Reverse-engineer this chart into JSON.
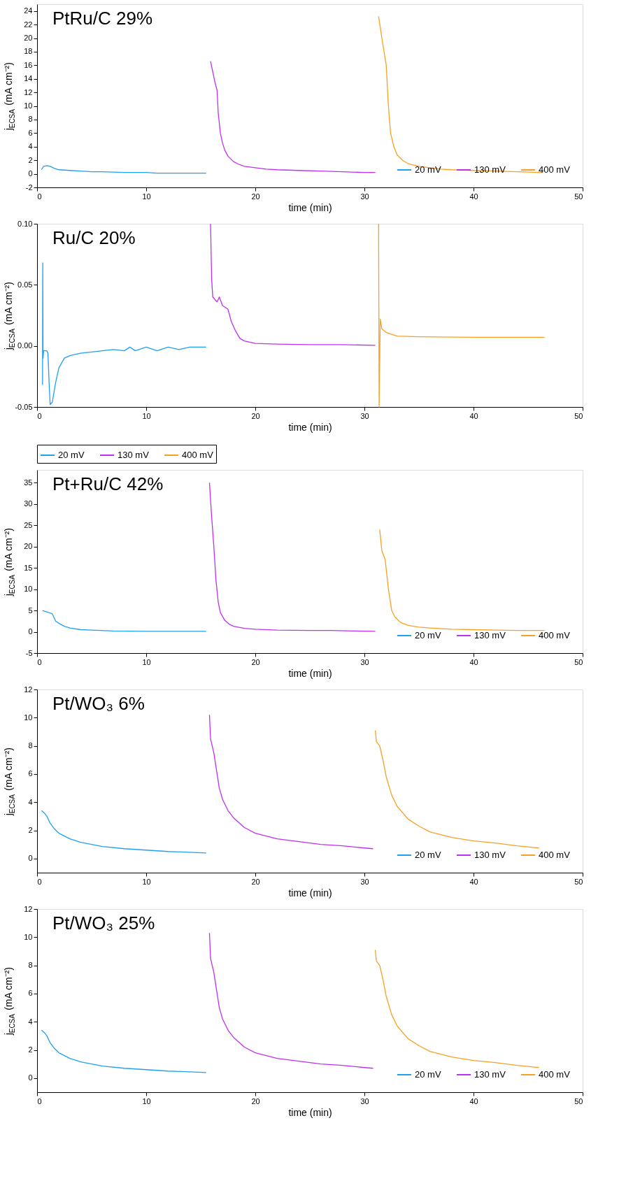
{
  "chart_data": [
    {
      "type": "line",
      "title": "PtRu/C 29%",
      "xlabel": "time (min)",
      "ylabel": "j$_{ECSA}$ (mA cm⁻²)",
      "xlim": [
        0,
        50
      ],
      "xticks": [
        0,
        10,
        20,
        30,
        40,
        50
      ],
      "ylim": [
        -2,
        25
      ],
      "yticks": [
        -2,
        0,
        2,
        4,
        6,
        8,
        10,
        12,
        14,
        16,
        18,
        20,
        22,
        24
      ],
      "legend": "bottom right",
      "series": [
        {
          "name": "20 mV",
          "color": "#1fa0f0",
          "x": [
            0.4,
            0.6,
            0.9,
            1.2,
            1.6,
            2,
            3,
            4,
            5,
            6,
            8,
            10,
            11,
            13,
            15.5
          ],
          "values": [
            0.6,
            1.1,
            1.2,
            1.1,
            0.8,
            0.6,
            0.5,
            0.4,
            0.3,
            0.3,
            0.2,
            0.2,
            0.1,
            0.1,
            0.1
          ]
        },
        {
          "name": "130 mV",
          "color": "#c030f0",
          "x": [
            15.9,
            16.3,
            16.5,
            16.6,
            16.8,
            17,
            17.2,
            17.5,
            18,
            18.5,
            19,
            20,
            21,
            22,
            24,
            26,
            28,
            30,
            31
          ],
          "values": [
            16.6,
            13.5,
            12.3,
            9,
            6,
            4.5,
            3.5,
            2.6,
            1.8,
            1.4,
            1.1,
            0.9,
            0.7,
            0.6,
            0.5,
            0.4,
            0.3,
            0.2,
            0.2
          ]
        },
        {
          "name": "400 mV",
          "color": "#f7a023",
          "x": [
            31.3,
            31.6,
            32,
            32.2,
            32.4,
            32.7,
            33,
            33.5,
            34,
            35,
            36,
            37,
            38,
            40,
            42,
            44,
            46.3
          ],
          "values": [
            23.2,
            20,
            16,
            10,
            6,
            4,
            2.8,
            2,
            1.5,
            1.1,
            0.9,
            0.7,
            0.6,
            0.5,
            0.4,
            0.3,
            0.2
          ]
        }
      ]
    },
    {
      "type": "line",
      "title": "Ru/C 20%",
      "xlabel": "time (min)",
      "ylabel": "j$_{ECSA}$ (mA cm⁻²)",
      "xlim": [
        0,
        50
      ],
      "xticks": [
        0,
        10,
        20,
        30,
        40,
        50
      ],
      "ylim": [
        -0.05,
        0.1
      ],
      "yticks": [
        {
          "value": -0.05,
          "label": "-0.05"
        },
        {
          "value": 0,
          "label": "0.00"
        },
        {
          "value": 0.05,
          "label": "0.05"
        },
        {
          "value": 0.1,
          "label": "0.10"
        }
      ],
      "legend": "bottom",
      "series": [
        {
          "name": "20 mV",
          "color": "#1fa0f0",
          "x": [
            0.5,
            0.52,
            0.55,
            0.6,
            0.9,
            1.0,
            1.1,
            1.2,
            1.4,
            1.7,
            2,
            2.5,
            3,
            4,
            5,
            6,
            7,
            8,
            8.5,
            9,
            10,
            11,
            12,
            13,
            14,
            15.5
          ],
          "values": [
            -0.032,
            0.068,
            -0.01,
            -0.004,
            -0.004,
            -0.006,
            -0.03,
            -0.048,
            -0.046,
            -0.03,
            -0.018,
            -0.01,
            -0.008,
            -0.006,
            -0.005,
            -0.004,
            -0.003,
            -0.004,
            -0.001,
            -0.004,
            -0.001,
            -0.004,
            -0.001,
            -0.003,
            -0.001,
            -0.001
          ]
        },
        {
          "name": "130 mV",
          "color": "#c030f0",
          "x": [
            15.9,
            16,
            16.1,
            16.5,
            16.7,
            17,
            17.5,
            17.8,
            18.2,
            18.6,
            19,
            20,
            22,
            25,
            28,
            31
          ],
          "values": [
            0.1,
            0.055,
            0.04,
            0.036,
            0.04,
            0.033,
            0.03,
            0.02,
            0.012,
            0.006,
            0.004,
            0.002,
            0.0015,
            0.001,
            0.001,
            0.0005
          ]
        },
        {
          "name": "400 mV",
          "color": "#f7a023",
          "x": [
            31.3,
            31.35,
            31.45,
            31.6,
            32,
            32.3,
            33,
            35,
            40,
            46.5
          ],
          "values": [
            0.1,
            -0.05,
            0.022,
            0.014,
            0.011,
            0.01,
            0.008,
            0.0075,
            0.007,
            0.007
          ]
        }
      ]
    },
    {
      "type": "line",
      "title": "Pt+Ru/C 42%",
      "xlabel": "time (min)",
      "ylabel": "j$_{ECSA}$ (mA cm⁻²)",
      "xlim": [
        0,
        50
      ],
      "xticks": [
        0,
        10,
        20,
        30,
        40,
        50
      ],
      "ylim": [
        -5,
        38
      ],
      "yticks": [
        -5,
        0,
        5,
        10,
        15,
        20,
        25,
        30,
        35
      ],
      "legend": "bottom right",
      "series": [
        {
          "name": "20 mV",
          "color": "#1fa0f0",
          "x": [
            0.5,
            1,
            1.4,
            1.7,
            2,
            2.5,
            3,
            4,
            5,
            7,
            10,
            15.5
          ],
          "values": [
            5,
            4.6,
            4.2,
            2.5,
            2,
            1.3,
            0.9,
            0.5,
            0.4,
            0.2,
            0.1,
            0.1
          ]
        },
        {
          "name": "130 mV",
          "color": "#c030f0",
          "x": [
            15.8,
            16,
            16.2,
            16.4,
            16.6,
            16.8,
            17.2,
            17.6,
            18,
            19,
            20,
            22,
            25,
            27,
            29,
            31
          ],
          "values": [
            35,
            27,
            20,
            12,
            7,
            4.5,
            2.7,
            1.8,
            1.3,
            0.8,
            0.6,
            0.4,
            0.3,
            0.3,
            0.2,
            0.1
          ]
        },
        {
          "name": "400 mV",
          "color": "#f7a023",
          "x": [
            31.4,
            31.6,
            31.9,
            32.2,
            32.5,
            32.8,
            33.3,
            34,
            35,
            36,
            38,
            40,
            42,
            44,
            46.5
          ],
          "values": [
            24,
            19,
            17,
            10,
            5,
            3.5,
            2.2,
            1.5,
            1.1,
            0.9,
            0.6,
            0.5,
            0.4,
            0.3,
            0.3
          ]
        }
      ]
    },
    {
      "type": "line",
      "title": "Pt/WO₃ 6%",
      "xlabel": "time (min)",
      "ylabel": "j$_{ECSA}$ (mA cm⁻²)",
      "xlim": [
        0,
        50
      ],
      "xticks": [
        0,
        10,
        20,
        30,
        40,
        50
      ],
      "ylim": [
        -1,
        12
      ],
      "yticks": [
        0,
        2,
        4,
        6,
        8,
        10,
        12
      ],
      "legend": "bottom right",
      "series": [
        {
          "name": "20 mV",
          "color": "#1fa0f0",
          "x": [
            0.4,
            0.7,
            0.9,
            1.2,
            1.6,
            2,
            3,
            4,
            5,
            6,
            8,
            10,
            12,
            14,
            15.5
          ],
          "values": [
            3.4,
            3.2,
            3.0,
            2.5,
            2.1,
            1.8,
            1.4,
            1.15,
            1.0,
            0.85,
            0.7,
            0.6,
            0.5,
            0.45,
            0.4
          ]
        },
        {
          "name": "130 mV",
          "color": "#c030f0",
          "x": [
            15.8,
            15.9,
            16.2,
            16.4,
            16.7,
            17,
            17.5,
            18,
            19,
            20,
            22,
            24,
            26,
            28,
            30,
            30.8
          ],
          "values": [
            10.2,
            8.5,
            7.5,
            6.5,
            5,
            4.2,
            3.4,
            2.9,
            2.2,
            1.8,
            1.4,
            1.2,
            1.0,
            0.9,
            0.75,
            0.7
          ]
        },
        {
          "name": "400 mV",
          "color": "#f7a023",
          "x": [
            31,
            31.1,
            31.4,
            31.7,
            32,
            32.5,
            33,
            34,
            35,
            36,
            38,
            40,
            42,
            44,
            46
          ],
          "values": [
            9.1,
            8.3,
            8.0,
            7.0,
            5.8,
            4.5,
            3.7,
            2.8,
            2.3,
            1.9,
            1.5,
            1.25,
            1.1,
            0.9,
            0.75
          ]
        }
      ]
    },
    {
      "type": "line",
      "title": "Pt/WO₃ 25%",
      "xlabel": "time (min)",
      "ylabel": "j$_{ECSA}$ (mA cm⁻²)",
      "xlim": [
        0,
        50
      ],
      "xticks": [
        0,
        10,
        20,
        30,
        40,
        50
      ],
      "ylim": [
        -1,
        12
      ],
      "yticks": [
        0,
        2,
        4,
        6,
        8,
        10,
        12
      ],
      "legend": "bottom right",
      "series": [
        {
          "name": "20 mV",
          "color": "#1fa0f0",
          "x": [
            0.4,
            0.7,
            0.9,
            1.2,
            1.6,
            2,
            3,
            4,
            5,
            6,
            8,
            10,
            12,
            14,
            15.5
          ],
          "values": [
            3.4,
            3.2,
            3.0,
            2.5,
            2.1,
            1.8,
            1.4,
            1.15,
            1.0,
            0.85,
            0.7,
            0.6,
            0.5,
            0.45,
            0.4
          ]
        },
        {
          "name": "130 mV",
          "color": "#c030f0",
          "x": [
            15.8,
            15.9,
            16.2,
            16.4,
            16.7,
            17,
            17.5,
            18,
            19,
            20,
            22,
            24,
            26,
            28,
            30,
            30.8
          ],
          "values": [
            10.3,
            8.5,
            7.5,
            6.5,
            5,
            4.2,
            3.4,
            2.9,
            2.2,
            1.8,
            1.4,
            1.2,
            1.0,
            0.9,
            0.75,
            0.7
          ]
        },
        {
          "name": "400 mV",
          "color": "#f7a023",
          "x": [
            31,
            31.1,
            31.4,
            31.7,
            32,
            32.5,
            33,
            34,
            35,
            36,
            38,
            40,
            42,
            44,
            46
          ],
          "values": [
            9.1,
            8.3,
            8.0,
            7.0,
            5.8,
            4.5,
            3.7,
            2.8,
            2.3,
            1.9,
            1.5,
            1.25,
            1.1,
            0.9,
            0.75
          ]
        }
      ]
    }
  ]
}
